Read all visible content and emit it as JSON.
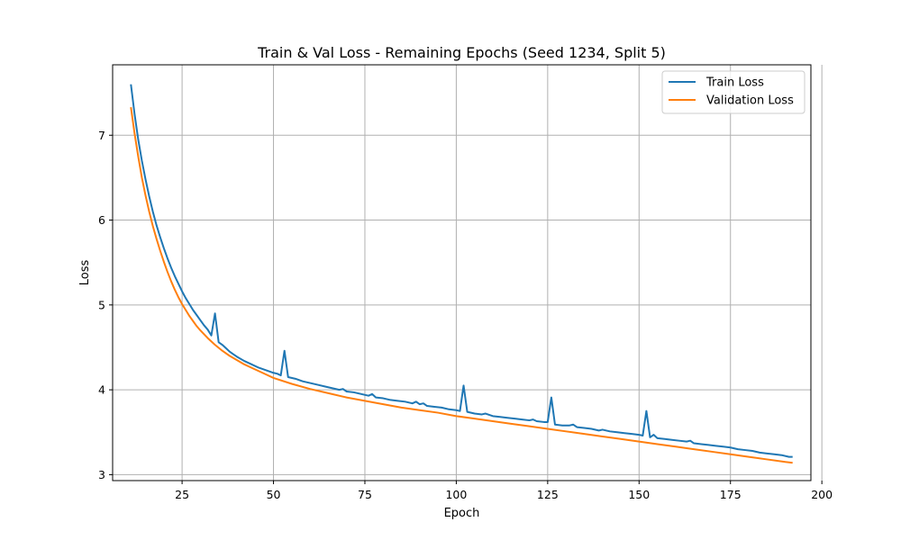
{
  "chart_data": {
    "type": "line",
    "title": "Train & Val Loss - Remaining Epochs (Seed 1234, Split 5)",
    "xlabel": "Epoch",
    "ylabel": "Loss",
    "xlim": [
      6,
      197
    ],
    "ylim": [
      2.93,
      7.83
    ],
    "xticks": [
      25,
      50,
      75,
      100,
      125,
      150,
      175,
      200
    ],
    "yticks": [
      3,
      4,
      5,
      6,
      7
    ],
    "grid": true,
    "legend_position": "top-right",
    "series": [
      {
        "name": "Train Loss",
        "color": "#1f77b4",
        "points": [
          [
            11,
            7.6
          ],
          [
            12,
            7.25
          ],
          [
            13,
            6.95
          ],
          [
            14,
            6.7
          ],
          [
            15,
            6.48
          ],
          [
            16,
            6.28
          ],
          [
            17,
            6.1
          ],
          [
            18,
            5.94
          ],
          [
            19,
            5.8
          ],
          [
            20,
            5.67
          ],
          [
            21,
            5.55
          ],
          [
            22,
            5.44
          ],
          [
            23,
            5.34
          ],
          [
            24,
            5.25
          ],
          [
            25,
            5.16
          ],
          [
            26,
            5.08
          ],
          [
            27,
            5.01
          ],
          [
            28,
            4.94
          ],
          [
            29,
            4.88
          ],
          [
            30,
            4.82
          ],
          [
            31,
            4.76
          ],
          [
            32,
            4.71
          ],
          [
            33,
            4.64
          ],
          [
            34,
            4.9
          ],
          [
            35,
            4.56
          ],
          [
            36,
            4.53
          ],
          [
            37,
            4.49
          ],
          [
            38,
            4.45
          ],
          [
            39,
            4.42
          ],
          [
            40,
            4.39
          ],
          [
            42,
            4.34
          ],
          [
            44,
            4.3
          ],
          [
            46,
            4.26
          ],
          [
            48,
            4.23
          ],
          [
            50,
            4.2
          ],
          [
            51,
            4.19
          ],
          [
            52,
            4.17
          ],
          [
            53,
            4.46
          ],
          [
            54,
            4.15
          ],
          [
            56,
            4.13
          ],
          [
            58,
            4.1
          ],
          [
            60,
            4.08
          ],
          [
            62,
            4.06
          ],
          [
            64,
            4.04
          ],
          [
            66,
            4.02
          ],
          [
            68,
            4.0
          ],
          [
            69,
            4.01
          ],
          [
            70,
            3.98
          ],
          [
            72,
            3.97
          ],
          [
            74,
            3.95
          ],
          [
            76,
            3.93
          ],
          [
            77,
            3.95
          ],
          [
            78,
            3.91
          ],
          [
            80,
            3.9
          ],
          [
            82,
            3.88
          ],
          [
            84,
            3.87
          ],
          [
            86,
            3.86
          ],
          [
            88,
            3.84
          ],
          [
            89,
            3.86
          ],
          [
            90,
            3.83
          ],
          [
            91,
            3.84
          ],
          [
            92,
            3.81
          ],
          [
            94,
            3.8
          ],
          [
            96,
            3.79
          ],
          [
            98,
            3.77
          ],
          [
            100,
            3.76
          ],
          [
            101,
            3.75
          ],
          [
            102,
            4.05
          ],
          [
            103,
            3.74
          ],
          [
            105,
            3.72
          ],
          [
            107,
            3.71
          ],
          [
            108,
            3.72
          ],
          [
            110,
            3.69
          ],
          [
            112,
            3.68
          ],
          [
            114,
            3.67
          ],
          [
            116,
            3.66
          ],
          [
            118,
            3.65
          ],
          [
            120,
            3.64
          ],
          [
            121,
            3.65
          ],
          [
            122,
            3.63
          ],
          [
            124,
            3.62
          ],
          [
            125,
            3.62
          ],
          [
            126,
            3.91
          ],
          [
            127,
            3.59
          ],
          [
            129,
            3.58
          ],
          [
            131,
            3.58
          ],
          [
            132,
            3.59
          ],
          [
            133,
            3.56
          ],
          [
            135,
            3.55
          ],
          [
            137,
            3.54
          ],
          [
            139,
            3.52
          ],
          [
            140,
            3.53
          ],
          [
            142,
            3.51
          ],
          [
            144,
            3.5
          ],
          [
            146,
            3.49
          ],
          [
            148,
            3.48
          ],
          [
            150,
            3.47
          ],
          [
            151,
            3.46
          ],
          [
            152,
            3.75
          ],
          [
            153,
            3.44
          ],
          [
            154,
            3.47
          ],
          [
            155,
            3.43
          ],
          [
            157,
            3.42
          ],
          [
            159,
            3.41
          ],
          [
            161,
            3.4
          ],
          [
            163,
            3.39
          ],
          [
            164,
            3.4
          ],
          [
            165,
            3.37
          ],
          [
            167,
            3.36
          ],
          [
            169,
            3.35
          ],
          [
            171,
            3.34
          ],
          [
            173,
            3.33
          ],
          [
            175,
            3.32
          ],
          [
            177,
            3.3
          ],
          [
            179,
            3.29
          ],
          [
            181,
            3.28
          ],
          [
            183,
            3.26
          ],
          [
            185,
            3.25
          ],
          [
            187,
            3.24
          ],
          [
            189,
            3.23
          ],
          [
            191,
            3.21
          ],
          [
            192,
            3.21
          ]
        ]
      },
      {
        "name": "Validation Loss",
        "color": "#ff7f0e",
        "points": [
          [
            11,
            7.33
          ],
          [
            12,
            7.02
          ],
          [
            13,
            6.75
          ],
          [
            14,
            6.5
          ],
          [
            15,
            6.29
          ],
          [
            16,
            6.1
          ],
          [
            17,
            5.93
          ],
          [
            18,
            5.78
          ],
          [
            19,
            5.64
          ],
          [
            20,
            5.51
          ],
          [
            21,
            5.39
          ],
          [
            22,
            5.28
          ],
          [
            23,
            5.18
          ],
          [
            24,
            5.09
          ],
          [
            25,
            5.01
          ],
          [
            26,
            4.94
          ],
          [
            27,
            4.87
          ],
          [
            28,
            4.81
          ],
          [
            29,
            4.75
          ],
          [
            30,
            4.7
          ],
          [
            32,
            4.61
          ],
          [
            34,
            4.53
          ],
          [
            36,
            4.46
          ],
          [
            38,
            4.4
          ],
          [
            40,
            4.35
          ],
          [
            42,
            4.3
          ],
          [
            44,
            4.26
          ],
          [
            46,
            4.22
          ],
          [
            48,
            4.18
          ],
          [
            50,
            4.14
          ],
          [
            55,
            4.07
          ],
          [
            60,
            4.01
          ],
          [
            65,
            3.96
          ],
          [
            70,
            3.91
          ],
          [
            75,
            3.87
          ],
          [
            80,
            3.83
          ],
          [
            85,
            3.79
          ],
          [
            90,
            3.76
          ],
          [
            95,
            3.73
          ],
          [
            100,
            3.69
          ],
          [
            105,
            3.66
          ],
          [
            110,
            3.63
          ],
          [
            115,
            3.6
          ],
          [
            120,
            3.57
          ],
          [
            125,
            3.54
          ],
          [
            130,
            3.51
          ],
          [
            135,
            3.48
          ],
          [
            140,
            3.45
          ],
          [
            145,
            3.42
          ],
          [
            150,
            3.39
          ],
          [
            155,
            3.36
          ],
          [
            160,
            3.33
          ],
          [
            165,
            3.3
          ],
          [
            170,
            3.27
          ],
          [
            175,
            3.24
          ],
          [
            180,
            3.21
          ],
          [
            185,
            3.18
          ],
          [
            190,
            3.15
          ],
          [
            192,
            3.14
          ]
        ]
      }
    ]
  }
}
